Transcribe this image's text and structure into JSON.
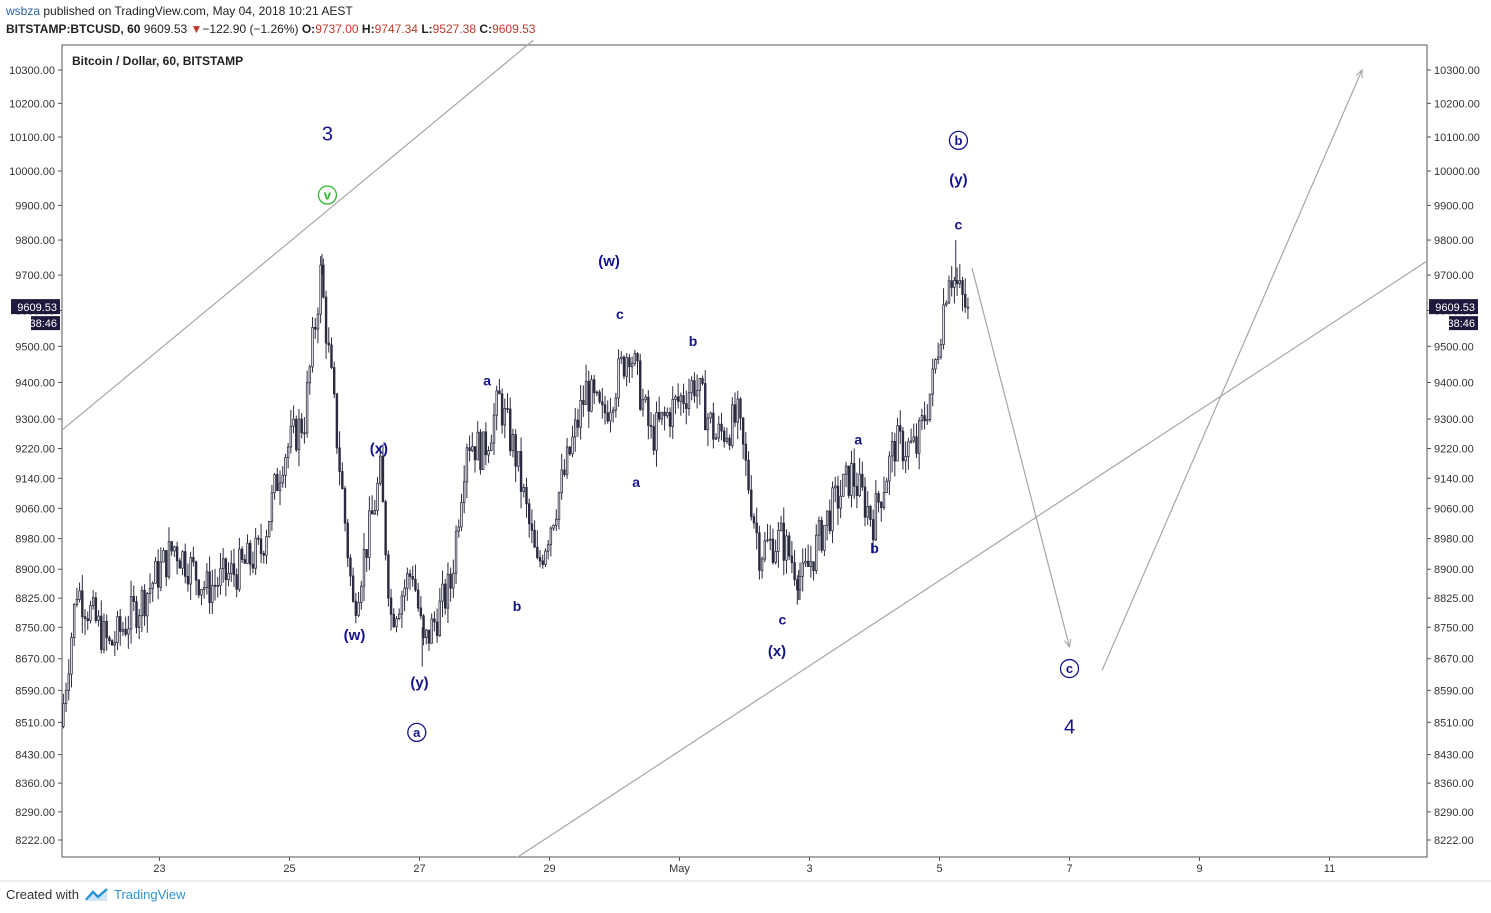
{
  "header": {
    "user": "wsbza",
    "published_text": "published on TradingView.com, May 04, 2018 10:21 AEST",
    "symbol": "BITSTAMP:BTCUSD, 60",
    "last": "9609.53",
    "arrow": "▼",
    "change": "−122.90 (−1.26%)",
    "o_label": "O:",
    "o": "9737.00",
    "h_label": "H:",
    "h": "9747.34",
    "l_label": "L:",
    "l": "9527.38",
    "c_label": "C:",
    "c": "9609.53"
  },
  "legend_title": "Bitcoin / Dollar, 60, BITSTAMP",
  "price_badge": {
    "price": "9609.53",
    "countdown": "38:46"
  },
  "footer": {
    "created_with": "Created with",
    "brand": "TradingView",
    "logo_icon": "tradingview-logo-icon"
  },
  "colors": {
    "candle": "#2b2b40",
    "wave": "#14148c",
    "green": "#2db52d",
    "line": "#a6a6a6",
    "badge": "#1f1a3d"
  },
  "chart_data": {
    "type": "candlestick",
    "title": "Bitcoin / Dollar, 60, BITSTAMP",
    "y_axis_labels": [
      "10300.00",
      "10200.00",
      "10100.00",
      "10000.00",
      "9900.00",
      "9800.00",
      "9700.00",
      "9600.00",
      "9500.00",
      "9400.00",
      "9300.00",
      "9220.00",
      "9140.00",
      "9060.00",
      "8980.00",
      "8900.00",
      "8825.00",
      "8750.00",
      "8670.00",
      "8590.00",
      "8510.00",
      "8430.00",
      "8360.00",
      "8290.00",
      "8222.00"
    ],
    "y_axis_scale": "log",
    "x_axis_labels": [
      "23",
      "25",
      "27",
      "29",
      "May",
      "3",
      "5",
      "7",
      "9",
      "11"
    ],
    "x_axis_start": "2018-04-21T12:00",
    "x_axis_end": "2018-05-12T12:00",
    "last_price": 9609.53,
    "anchors": [
      [
        "2018-04-21T12:00",
        8500
      ],
      [
        "2018-04-21T18:00",
        8850
      ],
      [
        "2018-04-22T06:00",
        8700
      ],
      [
        "2018-04-22T18:00",
        8820
      ],
      [
        "2018-04-23T06:00",
        8960
      ],
      [
        "2018-04-23T18:00",
        8850
      ],
      [
        "2018-04-24T06:00",
        8900
      ],
      [
        "2018-04-24T14:00",
        8950
      ],
      [
        "2018-04-24T22:00",
        9200
      ],
      [
        "2018-04-25T06:00",
        9300
      ],
      [
        "2018-04-25T12:00",
        9700
      ],
      [
        "2018-04-25T18:00",
        9250
      ],
      [
        "2018-04-26T00:00",
        8800
      ],
      [
        "2018-04-26T06:00",
        9000
      ],
      [
        "2018-04-26T10:00",
        9150
      ],
      [
        "2018-04-26T14:00",
        8780
      ],
      [
        "2018-04-26T22:00",
        8900
      ],
      [
        "2018-04-27T02:00",
        8700
      ],
      [
        "2018-04-27T12:00",
        8860
      ],
      [
        "2018-04-27T18:00",
        9250
      ],
      [
        "2018-04-28T00:00",
        9210
      ],
      [
        "2018-04-28T06:00",
        9350
      ],
      [
        "2018-04-28T12:00",
        9200
      ],
      [
        "2018-04-28T20:00",
        8900
      ],
      [
        "2018-04-29T06:00",
        9150
      ],
      [
        "2018-04-29T14:00",
        9380
      ],
      [
        "2018-04-29T20:00",
        9300
      ],
      [
        "2018-04-30T06:00",
        9500
      ],
      [
        "2018-04-30T14:00",
        9250
      ],
      [
        "2018-04-30T22:00",
        9330
      ],
      [
        "2018-05-01T06:00",
        9400
      ],
      [
        "2018-05-01T14:00",
        9250
      ],
      [
        "2018-05-01T22:00",
        9300
      ],
      [
        "2018-05-02T06:00",
        8950
      ],
      [
        "2018-05-02T14:00",
        8980
      ],
      [
        "2018-05-02T22:00",
        8870
      ],
      [
        "2018-05-03T08:00",
        9050
      ],
      [
        "2018-05-03T16:00",
        9150
      ],
      [
        "2018-05-04T00:00",
        9030
      ],
      [
        "2018-05-04T08:00",
        9230
      ],
      [
        "2018-05-04T16:00",
        9220
      ],
      [
        "2018-05-04T22:00",
        9400
      ],
      [
        "2018-05-05T04:00",
        9720
      ],
      [
        "2018-05-05T10:00",
        9609.53
      ]
    ],
    "extreme_wicks": [
      [
        "2018-04-25T12:00",
        9760
      ],
      [
        "2018-05-05T06:00",
        9800
      ],
      [
        "2018-05-02T20:00",
        8820
      ],
      [
        "2018-04-27T01:00",
        8650
      ]
    ],
    "channel_lines": [
      {
        "from": [
          "2018-04-21T12:00",
          9270
        ],
        "to": [
          "2018-04-28T18:00",
          10390
        ]
      },
      {
        "from": [
          "2018-04-28T12:00",
          8180
        ],
        "to": [
          "2018-05-12T12:00",
          9740
        ]
      }
    ],
    "projection_arrows": [
      {
        "from": [
          "2018-05-05T12:00",
          9720
        ],
        "to": [
          "2018-05-07T00:00",
          8700
        ]
      },
      {
        "from": [
          "2018-05-07T12:00",
          8640
        ],
        "to": [
          "2018-05-11T12:00",
          10300
        ]
      }
    ],
    "wave_labels": [
      {
        "text": "3",
        "at": [
          "2018-04-25T14:00",
          10110
        ],
        "style": "large"
      },
      {
        "text": "v",
        "at": [
          "2018-04-25T14:00",
          9930
        ],
        "style": "circle-green"
      },
      {
        "text": "(x)",
        "at": [
          "2018-04-26T09:00",
          9220
        ],
        "style": "normal"
      },
      {
        "text": "(w)",
        "at": [
          "2018-04-26T00:00",
          8730
        ],
        "style": "normal"
      },
      {
        "text": "(y)",
        "at": [
          "2018-04-27T00:00",
          8610
        ],
        "style": "normal"
      },
      {
        "text": "a",
        "at": [
          "2018-04-26T23:00",
          8485
        ],
        "style": "circle"
      },
      {
        "text": "a",
        "at": [
          "2018-04-28T01:00",
          9405
        ],
        "style": "small"
      },
      {
        "text": "b",
        "at": [
          "2018-04-28T12:00",
          8805
        ],
        "style": "small"
      },
      {
        "text": "(w)",
        "at": [
          "2018-04-29T22:00",
          9740
        ],
        "style": "normal"
      },
      {
        "text": "c",
        "at": [
          "2018-04-30T02:00",
          9590
        ],
        "style": "small"
      },
      {
        "text": "a",
        "at": [
          "2018-04-30T08:00",
          9130
        ],
        "style": "small"
      },
      {
        "text": "b",
        "at": [
          "2018-05-01T05:00",
          9515
        ],
        "style": "small"
      },
      {
        "text": "c",
        "at": [
          "2018-05-02T14:00",
          8770
        ],
        "style": "small"
      },
      {
        "text": "(x)",
        "at": [
          "2018-05-02T12:00",
          8690
        ],
        "style": "normal"
      },
      {
        "text": "a",
        "at": [
          "2018-05-03T18:00",
          9245
        ],
        "style": "small"
      },
      {
        "text": "b",
        "at": [
          "2018-05-04T00:00",
          8955
        ],
        "style": "small"
      },
      {
        "text": "b",
        "at": [
          "2018-05-05T07:00",
          10090
        ],
        "style": "circle"
      },
      {
        "text": "(y)",
        "at": [
          "2018-05-05T07:00",
          9975
        ],
        "style": "normal"
      },
      {
        "text": "c",
        "at": [
          "2018-05-05T07:00",
          9845
        ],
        "style": "small"
      },
      {
        "text": "c",
        "at": [
          "2018-05-07T00:00",
          8645
        ],
        "style": "circle"
      },
      {
        "text": "4",
        "at": [
          "2018-05-07T00:00",
          8500
        ],
        "style": "large"
      }
    ]
  }
}
